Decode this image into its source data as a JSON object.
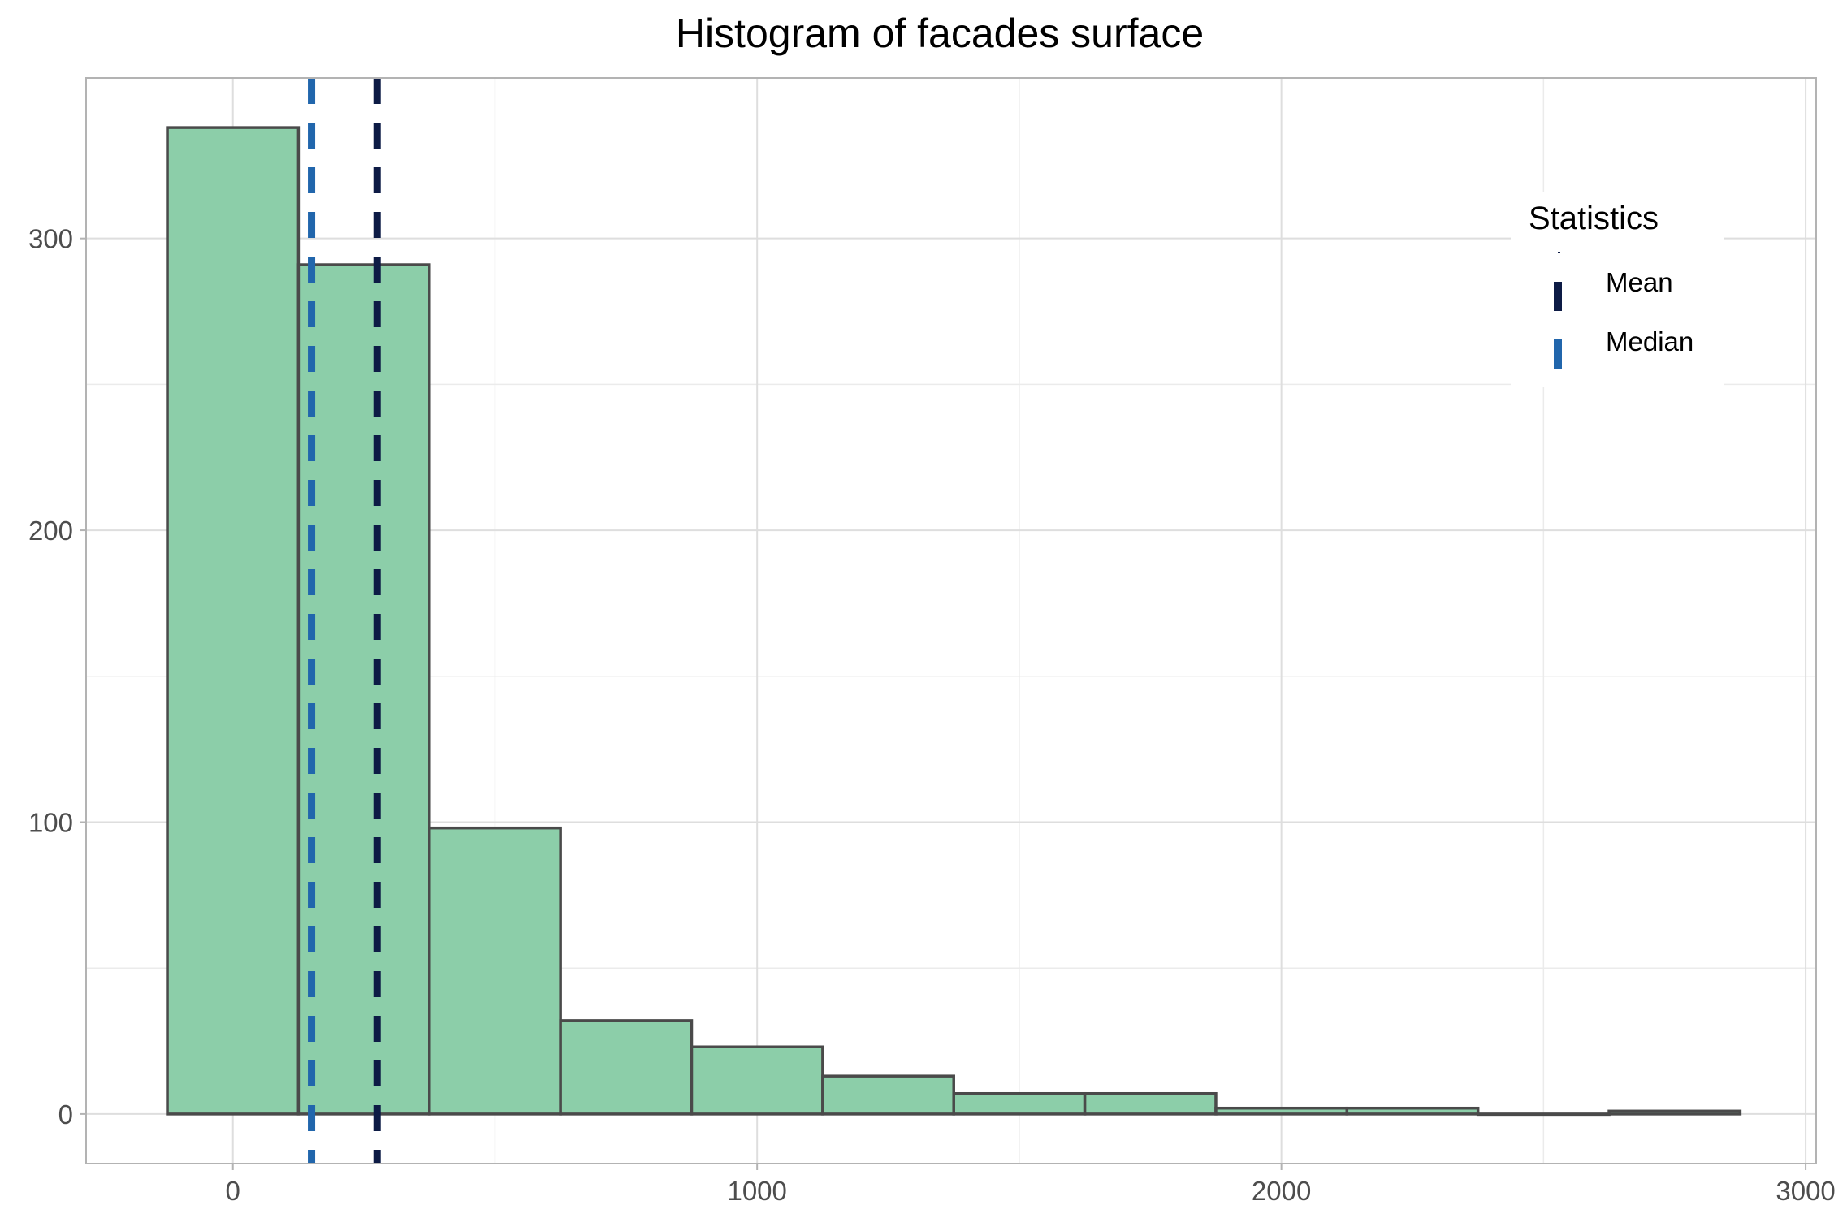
{
  "chart_data": {
    "type": "bar",
    "title": "Histogram of facades surface",
    "xlabel": "",
    "ylabel": "",
    "bins": [
      {
        "x0": -125,
        "x1": 125,
        "count": 338
      },
      {
        "x0": 125,
        "x1": 375,
        "count": 291
      },
      {
        "x0": 375,
        "x1": 625,
        "count": 98
      },
      {
        "x0": 625,
        "x1": 875,
        "count": 32
      },
      {
        "x0": 875,
        "x1": 1125,
        "count": 23
      },
      {
        "x0": 1125,
        "x1": 1375,
        "count": 13
      },
      {
        "x0": 1375,
        "x1": 1625,
        "count": 7
      },
      {
        "x0": 1625,
        "x1": 1875,
        "count": 7
      },
      {
        "x0": 1875,
        "x1": 2125,
        "count": 2
      },
      {
        "x0": 2125,
        "x1": 2375,
        "count": 2
      },
      {
        "x0": 2375,
        "x1": 2625,
        "count": 0
      },
      {
        "x0": 2625,
        "x1": 2875,
        "count": 1
      }
    ],
    "xlim": [
      -280,
      3020
    ],
    "ylim": [
      -17,
      355
    ],
    "x_ticks": [
      0,
      1000,
      2000,
      3000
    ],
    "x_tick_labels": [
      "0",
      "1000",
      "2000",
      "3000"
    ],
    "y_ticks": [
      0,
      100,
      200,
      300
    ],
    "y_tick_labels": [
      "0",
      "100",
      "200",
      "300"
    ],
    "x_minor_ticks": [
      500,
      1500,
      2500
    ],
    "y_minor_ticks": [
      50,
      150,
      250
    ],
    "reference_lines": [
      {
        "name": "Mean",
        "value": 275,
        "color": "#0d1b45"
      },
      {
        "name": "Median",
        "value": 150,
        "color": "#2166ac"
      }
    ],
    "legend": {
      "title": "Statistics",
      "position": "top-right",
      "items": [
        "Mean",
        "Median"
      ]
    },
    "bar_fill": "#8ccea9",
    "bar_stroke": "#4a4a4a",
    "grid": true
  }
}
